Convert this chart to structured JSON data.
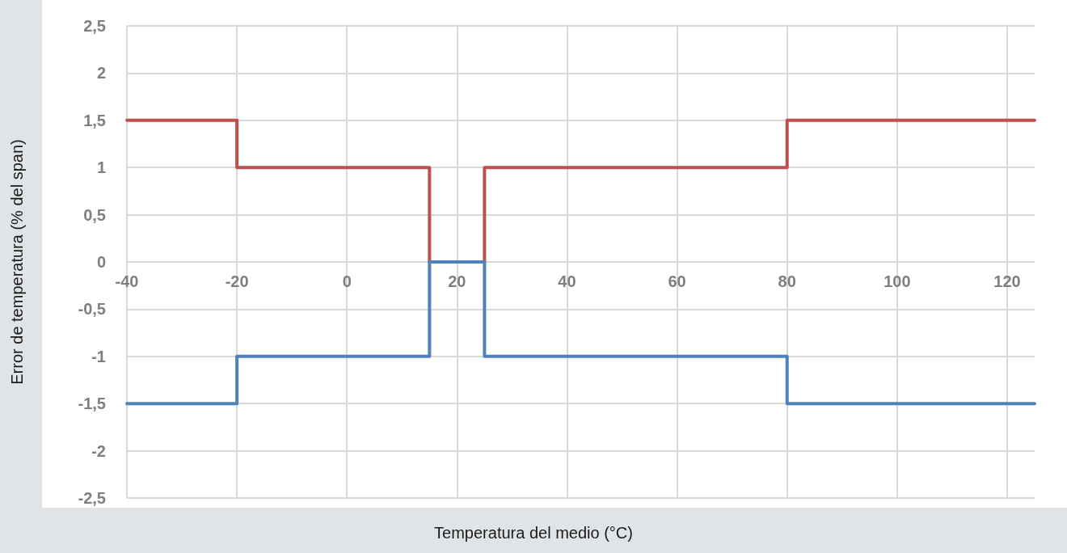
{
  "chart_data": {
    "type": "line",
    "xlabel": "Temperatura del medio (°C)",
    "ylabel": "Error de temperatura (% del span)",
    "series": [
      {
        "color": "#c0504d",
        "x": [
          -40,
          -20,
          -20,
          15,
          15,
          25,
          25,
          80,
          80,
          125
        ],
        "values": [
          1.5,
          1.5,
          1,
          1,
          0,
          0,
          1,
          1,
          1.5,
          1.5
        ]
      },
      {
        "color": "#4f81bd",
        "x": [
          -40,
          -20,
          -20,
          15,
          15,
          25,
          25,
          80,
          80,
          125
        ],
        "values": [
          -1.5,
          -1.5,
          -1,
          -1,
          0,
          0,
          -1,
          -1,
          -1.5,
          -1.5
        ]
      }
    ],
    "xlim": [
      -40,
      125
    ],
    "xticks": [
      -40,
      -20,
      0,
      20,
      40,
      60,
      80,
      100,
      120
    ],
    "ylim": [
      -2.5,
      2.5
    ],
    "yticks": [
      {
        "value": -2.5,
        "label": "-2,5"
      },
      -2,
      {
        "value": -1.5,
        "label": "-1,5"
      },
      -1,
      {
        "value": -0.5,
        "label": "-0,5"
      },
      0,
      {
        "value": 0.5,
        "label": "0,5"
      },
      1,
      {
        "value": 1.5,
        "label": "1,5"
      },
      2,
      {
        "value": 2.5,
        "label": "2,5"
      }
    ],
    "grid": true,
    "marker": "none",
    "line_style": "solid"
  }
}
